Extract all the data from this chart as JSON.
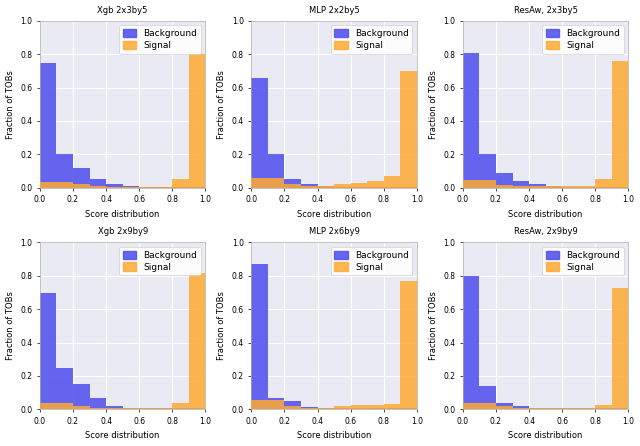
{
  "titles": [
    "Xgb 2x3by5",
    "MLP 2x2by5",
    "ResAw, 2x3by5",
    "Xgb 2x9by9",
    "MLP 2x6by9",
    "ResAw, 2x9by9"
  ],
  "bg_color": "#5555ee",
  "sig_color": "#ffaa33",
  "xlabel": "Score distribution",
  "ylabel": "Fraction of TOBs",
  "plots": [
    {
      "bg_bins": [
        0.75,
        0.2,
        0.12,
        0.05,
        0.02,
        0.01,
        0.005,
        0.005,
        0.005,
        0.005
      ],
      "sig_bins": [
        0.035,
        0.035,
        0.02,
        0.01,
        0.005,
        0.005,
        0.005,
        0.005,
        0.05,
        0.8
      ]
    },
    {
      "bg_bins": [
        0.66,
        0.2,
        0.05,
        0.02,
        0.01,
        0.005,
        0.005,
        0.005,
        0.005,
        0.005
      ],
      "sig_bins": [
        0.055,
        0.055,
        0.02,
        0.01,
        0.01,
        0.02,
        0.03,
        0.04,
        0.07,
        0.7
      ]
    },
    {
      "bg_bins": [
        0.81,
        0.2,
        0.09,
        0.04,
        0.02,
        0.01,
        0.005,
        0.005,
        0.005,
        0.005
      ],
      "sig_bins": [
        0.045,
        0.045,
        0.015,
        0.01,
        0.01,
        0.01,
        0.01,
        0.01,
        0.05,
        0.76
      ]
    },
    {
      "bg_bins": [
        0.7,
        0.25,
        0.15,
        0.07,
        0.02,
        0.01,
        0.005,
        0.005,
        0.005,
        0.005
      ],
      "sig_bins": [
        0.035,
        0.035,
        0.02,
        0.01,
        0.005,
        0.005,
        0.005,
        0.005,
        0.04,
        0.82
      ]
    },
    {
      "bg_bins": [
        0.87,
        0.07,
        0.05,
        0.015,
        0.008,
        0.005,
        0.005,
        0.005,
        0.005,
        0.005
      ],
      "sig_bins": [
        0.055,
        0.055,
        0.02,
        0.01,
        0.01,
        0.02,
        0.025,
        0.025,
        0.03,
        0.77
      ]
    },
    {
      "bg_bins": [
        0.8,
        0.14,
        0.04,
        0.02,
        0.01,
        0.005,
        0.005,
        0.005,
        0.005,
        0.005
      ],
      "sig_bins": [
        0.04,
        0.04,
        0.02,
        0.01,
        0.01,
        0.01,
        0.01,
        0.01,
        0.025,
        0.73
      ]
    }
  ],
  "ylim": [
    0.0,
    1.0
  ],
  "xlim": [
    0.0,
    1.0
  ],
  "bin_edges": [
    0.0,
    0.1,
    0.2,
    0.3,
    0.4,
    0.5,
    0.6,
    0.7,
    0.8,
    0.9,
    1.0
  ],
  "axes_facecolor": "#eaeaf4",
  "grid_color": "#ffffff",
  "title_fontsize": 6,
  "axis_fontsize": 6,
  "tick_fontsize": 5.5,
  "legend_fontsize": 6.5
}
